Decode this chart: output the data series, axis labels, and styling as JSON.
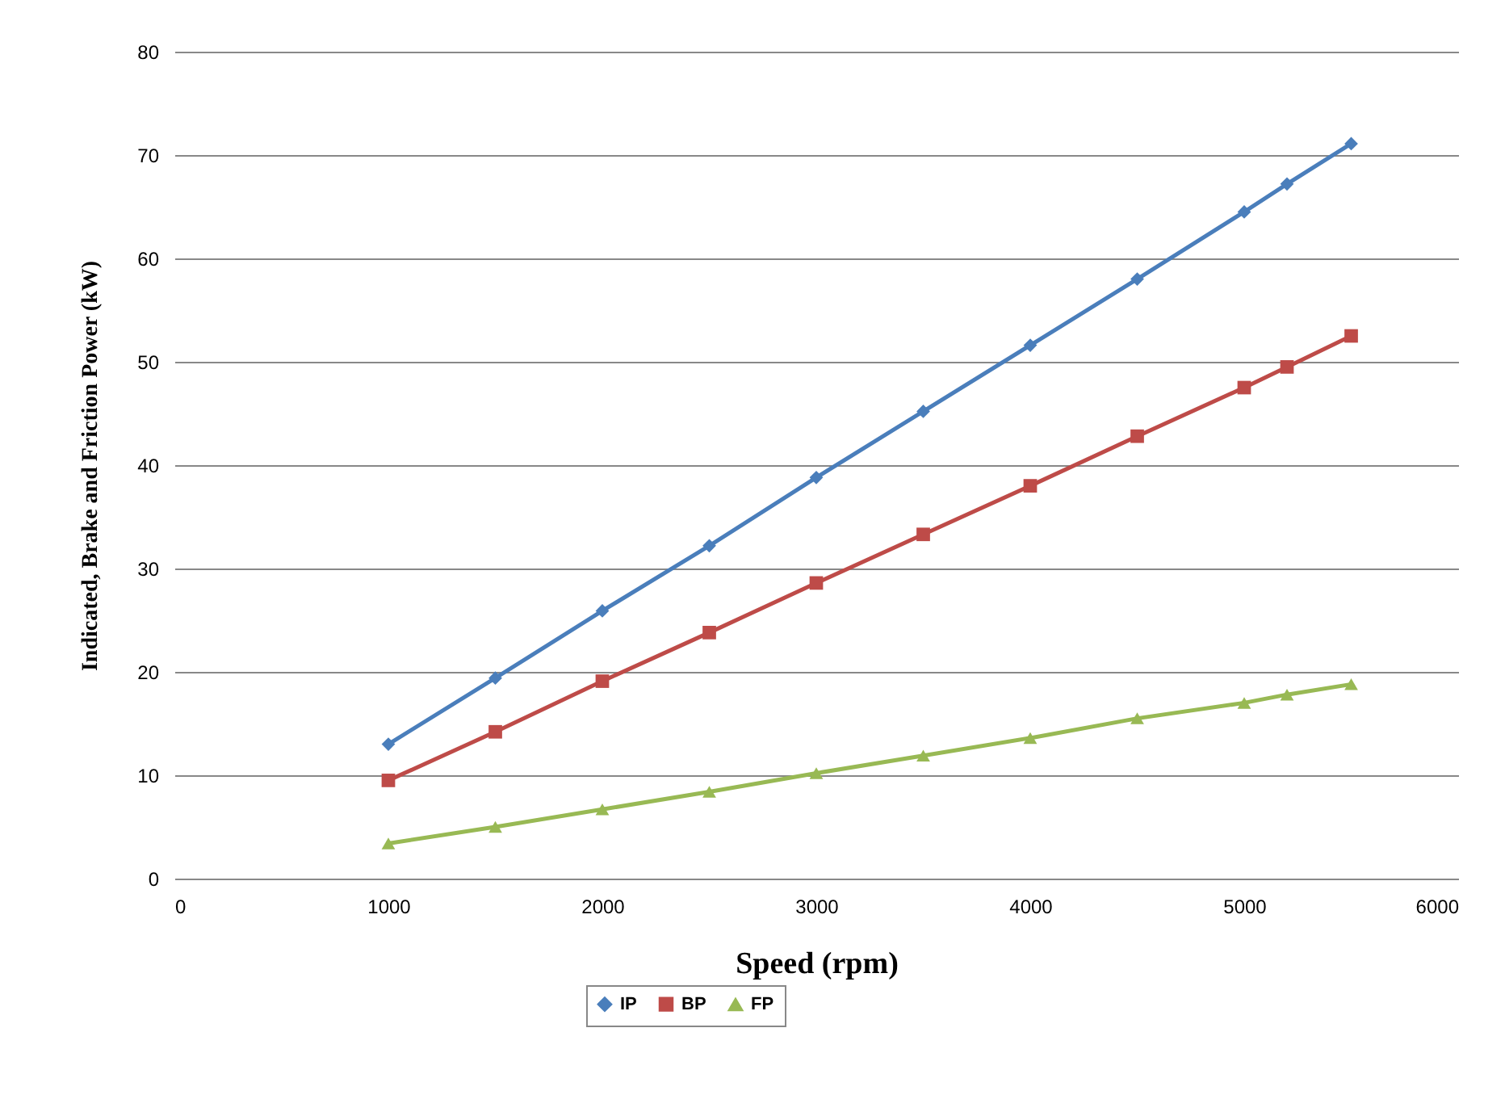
{
  "chart_data": {
    "type": "line",
    "xlabel": "Speed (rpm)",
    "ylabel": "Indicated, Brake and Friction Power (kW)",
    "x": [
      1000,
      1500,
      2000,
      2500,
      3000,
      3500,
      4000,
      4500,
      5000,
      5200,
      5500
    ],
    "series": [
      {
        "name": "IP",
        "color": "#4a7ebb",
        "marker": "diamond",
        "values": [
          13.0,
          19.4,
          25.9,
          32.2,
          38.8,
          45.2,
          51.6,
          58.0,
          64.5,
          67.2,
          71.1
        ]
      },
      {
        "name": "BP",
        "color": "#be4b48",
        "marker": "square",
        "values": [
          9.5,
          14.2,
          19.1,
          23.8,
          28.6,
          33.3,
          38.0,
          42.8,
          47.5,
          49.5,
          52.5
        ]
      },
      {
        "name": "FP",
        "color": "#98b954",
        "marker": "triangle",
        "values": [
          3.4,
          5.0,
          6.7,
          8.4,
          10.2,
          11.9,
          13.6,
          15.5,
          17.0,
          17.8,
          18.8
        ]
      }
    ],
    "xlim": [
      0,
      6000
    ],
    "xticks": [
      0,
      1000,
      2000,
      3000,
      4000,
      5000,
      6000
    ],
    "ylim": [
      0,
      80
    ],
    "yticks": [
      0,
      10,
      20,
      30,
      40,
      50,
      60,
      70,
      80
    ],
    "grid": "y",
    "legend": "bottom",
    "line_style": "solid"
  }
}
